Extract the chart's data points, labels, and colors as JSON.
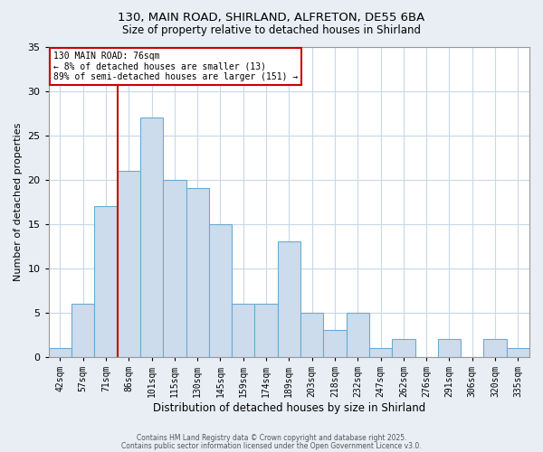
{
  "title1": "130, MAIN ROAD, SHIRLAND, ALFRETON, DE55 6BA",
  "title2": "Size of property relative to detached houses in Shirland",
  "xlabel": "Distribution of detached houses by size in Shirland",
  "ylabel": "Number of detached properties",
  "bar_labels": [
    "42sqm",
    "57sqm",
    "71sqm",
    "86sqm",
    "101sqm",
    "115sqm",
    "130sqm",
    "145sqm",
    "159sqm",
    "174sqm",
    "189sqm",
    "203sqm",
    "218sqm",
    "232sqm",
    "247sqm",
    "262sqm",
    "276sqm",
    "291sqm",
    "306sqm",
    "320sqm",
    "335sqm"
  ],
  "bar_heights": [
    1,
    6,
    17,
    21,
    27,
    20,
    19,
    15,
    6,
    6,
    13,
    5,
    3,
    5,
    1,
    2,
    0,
    2,
    0,
    2,
    1
  ],
  "bar_color": "#ccdcec",
  "bar_edge_color": "#6aaad4",
  "vline_x_index": 2,
  "vline_color": "#cc0000",
  "annotation_title": "130 MAIN ROAD: 76sqm",
  "annotation_line1": "← 8% of detached houses are smaller (13)",
  "annotation_line2": "89% of semi-detached houses are larger (151) →",
  "annotation_box_color": "#ffffff",
  "annotation_border_color": "#cc0000",
  "ylim": [
    0,
    35
  ],
  "yticks": [
    0,
    5,
    10,
    15,
    20,
    25,
    30,
    35
  ],
  "footer1": "Contains HM Land Registry data © Crown copyright and database right 2025.",
  "footer2": "Contains public sector information licensed under the Open Government Licence v3.0.",
  "background_color": "#e8eef4",
  "plot_background_color": "#ffffff",
  "grid_color": "#c8d8e8"
}
